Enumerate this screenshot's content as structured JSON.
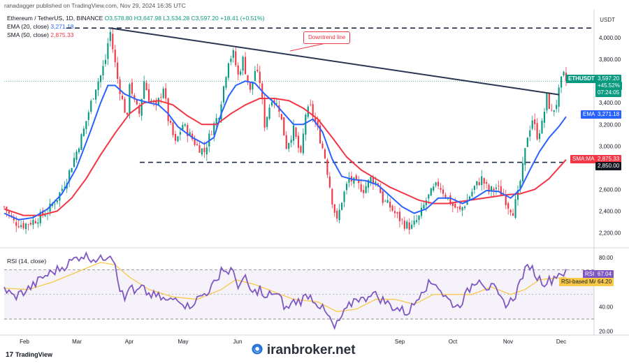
{
  "header": {
    "source": "ranadagger published on TradingView.com, Nov 29, 2024 16:35 UTC",
    "symbol": "Ethereum / TetherUS, 1D, BINANCE",
    "ohlc": "O3,578.80 H3,647.98 L3,534.28 C3,597.20 +18.41 (+0.51%)",
    "ema_label": "EMA (20, close)",
    "ema_value": "3,271.18",
    "sma_label": "SMA (50, close)",
    "sma_value": "2,875.33",
    "currency": "USDT"
  },
  "rsi": {
    "label": "RSI (14, close)",
    "value_tag": "67.04",
    "ma_tag": "64.20",
    "rsi_name": "RSI",
    "ma_name": "RSI-based MA"
  },
  "tags": {
    "price_symbol": "ETHUSDT",
    "price": "3,597.20",
    "change": "+45.52%",
    "countdown": "07:24:05",
    "ema_name": "EMA",
    "ema_price": "3,271.18",
    "sma_name": "SMA:MA",
    "sma_price": "2,875.33",
    "support": "2,850.00"
  },
  "annotation": "Downtrend line",
  "footer": {
    "logo": "TradingView",
    "watermark": "iranbroker.net"
  },
  "colors": {
    "up": "#089981",
    "down": "#f23645",
    "ema": "#2962ff",
    "sma": "#f23645",
    "rsi": "#7e57c2",
    "rsi_ma": "#f7c948",
    "trendline": "#2a3550"
  },
  "chart_data": {
    "type": "candlestick",
    "x_labels": [
      "Feb",
      "Mar",
      "Apr",
      "May",
      "Jun",
      "Sep",
      "Oct",
      "Nov",
      "Dec"
    ],
    "y_ticks": [
      "4,000.00",
      "3,800.00",
      "3,600.00",
      "3,400.00",
      "3,200.00",
      "3,000.00",
      "2,800.00",
      "2,600.00",
      "2,400.00",
      "2,200.00"
    ],
    "y_tick_values": [
      4000,
      3800,
      3600,
      3400,
      3200,
      3000,
      2800,
      2600,
      2400,
      2200
    ],
    "ylim": [
      2080,
      4130
    ],
    "rsi_ticks": [
      "80.00",
      "60.00",
      "40.00",
      "20.00"
    ],
    "rsi_tick_values": [
      80,
      60,
      40,
      20
    ],
    "rsi_lim": [
      17,
      85
    ],
    "support_level": 2850,
    "resistance_level": 4090,
    "rsi_band": [
      70,
      30
    ],
    "close_points": [
      [
        0,
        2440
      ],
      [
        4,
        2300
      ],
      [
        8,
        2270
      ],
      [
        13,
        2320
      ],
      [
        18,
        2400
      ],
      [
        22,
        2520
      ],
      [
        26,
        2700
      ],
      [
        30,
        2950
      ],
      [
        33,
        3150
      ],
      [
        36,
        3400
      ],
      [
        38,
        3550
      ],
      [
        40,
        3650
      ],
      [
        42,
        3800
      ],
      [
        43,
        3950
      ],
      [
        44,
        4050
      ],
      [
        45,
        3900
      ],
      [
        47,
        3620
      ],
      [
        49,
        3420
      ],
      [
        51,
        3250
      ],
      [
        52,
        3600
      ],
      [
        54,
        3400
      ],
      [
        56,
        3300
      ],
      [
        58,
        3600
      ],
      [
        60,
        3450
      ],
      [
        63,
        3350
      ],
      [
        66,
        3550
      ],
      [
        68,
        3250
      ],
      [
        71,
        3020
      ],
      [
        74,
        3200
      ],
      [
        77,
        3100
      ],
      [
        80,
        3000
      ],
      [
        83,
        2950
      ],
      [
        86,
        3150
      ],
      [
        89,
        3300
      ],
      [
        91,
        3550
      ],
      [
        93,
        3800
      ],
      [
        95,
        3850
      ],
      [
        97,
        3650
      ],
      [
        99,
        3800
      ],
      [
        102,
        3500
      ],
      [
        104,
        3700
      ],
      [
        106,
        3600
      ],
      [
        108,
        3200
      ],
      [
        111,
        3450
      ],
      [
        114,
        3350
      ],
      [
        117,
        3000
      ],
      [
        120,
        3150
      ],
      [
        123,
        2900
      ],
      [
        125,
        3300
      ],
      [
        127,
        3350
      ],
      [
        130,
        3150
      ],
      [
        133,
        2900
      ],
      [
        136,
        2500
      ],
      [
        138,
        2300
      ],
      [
        140,
        2500
      ],
      [
        143,
        2700
      ],
      [
        146,
        2650
      ],
      [
        149,
        2600
      ],
      [
        152,
        2700
      ],
      [
        155,
        2650
      ],
      [
        157,
        2500
      ],
      [
        160,
        2440
      ],
      [
        163,
        2350
      ],
      [
        166,
        2280
      ],
      [
        169,
        2250
      ],
      [
        172,
        2340
      ],
      [
        175,
        2500
      ],
      [
        178,
        2600
      ],
      [
        180,
        2650
      ],
      [
        183,
        2550
      ],
      [
        186,
        2450
      ],
      [
        189,
        2400
      ],
      [
        192,
        2500
      ],
      [
        195,
        2620
      ],
      [
        198,
        2700
      ],
      [
        201,
        2580
      ],
      [
        204,
        2620
      ],
      [
        207,
        2550
      ],
      [
        209,
        2450
      ],
      [
        211,
        2400
      ],
      [
        213,
        2550
      ],
      [
        215,
        2800
      ],
      [
        217,
        3100
      ],
      [
        219,
        3250
      ],
      [
        221,
        3100
      ],
      [
        223,
        3200
      ],
      [
        225,
        3450
      ],
      [
        227,
        3300
      ],
      [
        229,
        3400
      ],
      [
        231,
        3600
      ],
      [
        232,
        3650
      ],
      [
        233,
        3597
      ]
    ],
    "ema_points": [
      [
        0,
        2380
      ],
      [
        6,
        2320
      ],
      [
        12,
        2340
      ],
      [
        18,
        2420
      ],
      [
        24,
        2560
      ],
      [
        30,
        2800
      ],
      [
        36,
        3150
      ],
      [
        40,
        3400
      ],
      [
        43,
        3560
      ],
      [
        46,
        3560
      ],
      [
        50,
        3480
      ],
      [
        55,
        3430
      ],
      [
        60,
        3400
      ],
      [
        64,
        3380
      ],
      [
        68,
        3300
      ],
      [
        72,
        3180
      ],
      [
        78,
        3080
      ],
      [
        83,
        3020
      ],
      [
        87,
        3080
      ],
      [
        90,
        3300
      ],
      [
        93,
        3460
      ],
      [
        96,
        3560
      ],
      [
        100,
        3600
      ],
      [
        104,
        3580
      ],
      [
        108,
        3480
      ],
      [
        112,
        3400
      ],
      [
        116,
        3300
      ],
      [
        120,
        3200
      ],
      [
        124,
        3200
      ],
      [
        128,
        3250
      ],
      [
        132,
        3130
      ],
      [
        136,
        2880
      ],
      [
        140,
        2720
      ],
      [
        145,
        2690
      ],
      [
        150,
        2680
      ],
      [
        155,
        2640
      ],
      [
        160,
        2540
      ],
      [
        165,
        2440
      ],
      [
        170,
        2380
      ],
      [
        175,
        2420
      ],
      [
        180,
        2520
      ],
      [
        185,
        2520
      ],
      [
        190,
        2470
      ],
      [
        195,
        2520
      ],
      [
        200,
        2590
      ],
      [
        205,
        2580
      ],
      [
        210,
        2520
      ],
      [
        214,
        2600
      ],
      [
        218,
        2780
      ],
      [
        222,
        2950
      ],
      [
        226,
        3080
      ],
      [
        230,
        3180
      ],
      [
        233,
        3271
      ]
    ],
    "sma_points": [
      [
        0,
        2420
      ],
      [
        8,
        2360
      ],
      [
        15,
        2360
      ],
      [
        22,
        2400
      ],
      [
        28,
        2520
      ],
      [
        34,
        2700
      ],
      [
        40,
        2920
      ],
      [
        46,
        3120
      ],
      [
        52,
        3300
      ],
      [
        58,
        3400
      ],
      [
        64,
        3420
      ],
      [
        70,
        3380
      ],
      [
        76,
        3280
      ],
      [
        82,
        3200
      ],
      [
        88,
        3200
      ],
      [
        94,
        3300
      ],
      [
        100,
        3380
      ],
      [
        106,
        3440
      ],
      [
        112,
        3440
      ],
      [
        118,
        3420
      ],
      [
        124,
        3350
      ],
      [
        130,
        3250
      ],
      [
        136,
        3080
      ],
      [
        142,
        2900
      ],
      [
        148,
        2780
      ],
      [
        154,
        2700
      ],
      [
        160,
        2620
      ],
      [
        166,
        2560
      ],
      [
        172,
        2500
      ],
      [
        178,
        2470
      ],
      [
        184,
        2470
      ],
      [
        190,
        2490
      ],
      [
        196,
        2510
      ],
      [
        202,
        2530
      ],
      [
        208,
        2550
      ],
      [
        214,
        2560
      ],
      [
        220,
        2600
      ],
      [
        226,
        2700
      ],
      [
        230,
        2800
      ],
      [
        233,
        2875
      ]
    ],
    "rsi_points": [
      [
        0,
        55
      ],
      [
        4,
        48
      ],
      [
        8,
        52
      ],
      [
        12,
        57
      ],
      [
        16,
        64
      ],
      [
        20,
        68
      ],
      [
        24,
        72
      ],
      [
        28,
        77
      ],
      [
        32,
        82
      ],
      [
        36,
        80
      ],
      [
        40,
        78
      ],
      [
        44,
        84
      ],
      [
        46,
        76
      ],
      [
        48,
        55
      ],
      [
        50,
        45
      ],
      [
        52,
        58
      ],
      [
        54,
        50
      ],
      [
        57,
        55
      ],
      [
        60,
        50
      ],
      [
        64,
        48
      ],
      [
        68,
        44
      ],
      [
        72,
        48
      ],
      [
        76,
        40
      ],
      [
        80,
        46
      ],
      [
        84,
        52
      ],
      [
        88,
        60
      ],
      [
        90,
        72
      ],
      [
        92,
        68
      ],
      [
        94,
        70
      ],
      [
        97,
        58
      ],
      [
        100,
        62
      ],
      [
        103,
        50
      ],
      [
        106,
        55
      ],
      [
        108,
        45
      ],
      [
        111,
        52
      ],
      [
        114,
        48
      ],
      [
        117,
        38
      ],
      [
        120,
        44
      ],
      [
        123,
        45
      ],
      [
        126,
        50
      ],
      [
        129,
        45
      ],
      [
        132,
        38
      ],
      [
        135,
        30
      ],
      [
        137,
        22
      ],
      [
        140,
        32
      ],
      [
        143,
        40
      ],
      [
        146,
        48
      ],
      [
        149,
        45
      ],
      [
        152,
        52
      ],
      [
        155,
        48
      ],
      [
        158,
        44
      ],
      [
        161,
        40
      ],
      [
        164,
        38
      ],
      [
        167,
        35
      ],
      [
        170,
        42
      ],
      [
        173,
        54
      ],
      [
        176,
        58
      ],
      [
        179,
        60
      ],
      [
        182,
        50
      ],
      [
        185,
        44
      ],
      [
        188,
        40
      ],
      [
        191,
        48
      ],
      [
        194,
        58
      ],
      [
        197,
        64
      ],
      [
        200,
        56
      ],
      [
        203,
        55
      ],
      [
        206,
        45
      ],
      [
        209,
        42
      ],
      [
        212,
        50
      ],
      [
        215,
        66
      ],
      [
        218,
        74
      ],
      [
        221,
        64
      ],
      [
        224,
        60
      ],
      [
        227,
        62
      ],
      [
        229,
        66
      ],
      [
        231,
        68
      ],
      [
        233,
        67
      ]
    ],
    "rsi_ma_points": [
      [
        0,
        55
      ],
      [
        10,
        54
      ],
      [
        20,
        60
      ],
      [
        30,
        68
      ],
      [
        40,
        76
      ],
      [
        46,
        74
      ],
      [
        52,
        64
      ],
      [
        60,
        54
      ],
      [
        70,
        48
      ],
      [
        80,
        46
      ],
      [
        90,
        54
      ],
      [
        96,
        62
      ],
      [
        104,
        58
      ],
      [
        112,
        52
      ],
      [
        120,
        46
      ],
      [
        130,
        44
      ],
      [
        138,
        36
      ],
      [
        146,
        38
      ],
      [
        154,
        46
      ],
      [
        162,
        46
      ],
      [
        170,
        42
      ],
      [
        178,
        50
      ],
      [
        186,
        50
      ],
      [
        194,
        50
      ],
      [
        202,
        56
      ],
      [
        210,
        50
      ],
      [
        216,
        54
      ],
      [
        222,
        62
      ],
      [
        228,
        63
      ],
      [
        233,
        64
      ]
    ]
  }
}
